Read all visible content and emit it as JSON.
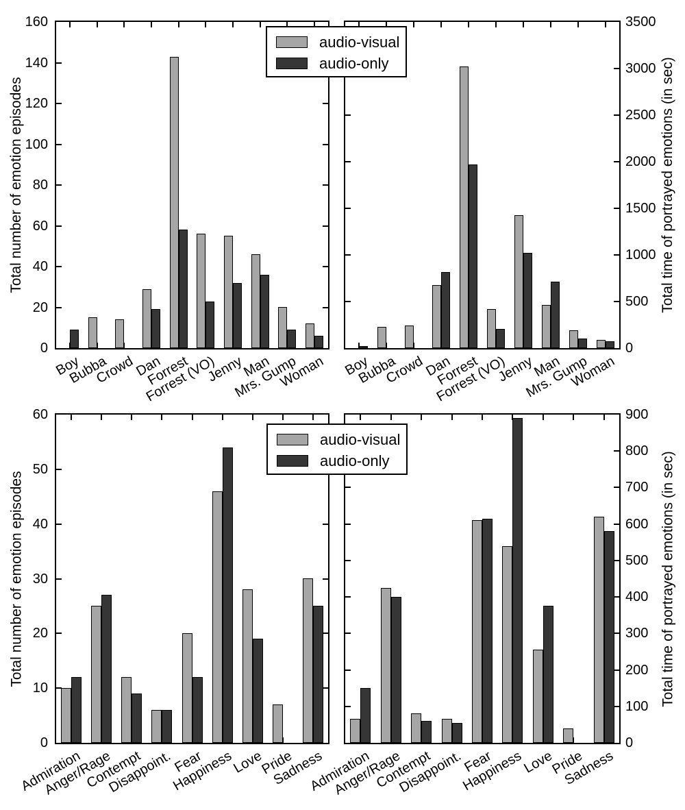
{
  "legend": {
    "items": [
      {
        "name": "audio-visual",
        "label": "audio-visual",
        "color": "#a6a6a6"
      },
      {
        "name": "audio-only",
        "label": "audio-only",
        "color": "#363636"
      }
    ]
  },
  "chart_data": [
    {
      "id": "top-left",
      "type": "bar",
      "ylabel": "Total number of emotion episodes",
      "yside": "left",
      "ylim": [
        0,
        160
      ],
      "ytick_step": 20,
      "grid": false,
      "categories": [
        "Boy",
        "Bubba",
        "Crowd",
        "Dan",
        "Forrest",
        "Forrest (VO)",
        "Jenny",
        "Man",
        "Mrs. Gump",
        "Woman"
      ],
      "series": [
        {
          "name": "audio-visual",
          "values": [
            0,
            15,
            14,
            29,
            143,
            56,
            55,
            46,
            20,
            12
          ]
        },
        {
          "name": "audio-only",
          "values": [
            9,
            0,
            0,
            19,
            58,
            23,
            32,
            36,
            9,
            6
          ]
        }
      ]
    },
    {
      "id": "top-right",
      "type": "bar",
      "ylabel": "Total time of portrayed emotions (in sec)",
      "yside": "right",
      "ylim": [
        0,
        3500
      ],
      "ytick_step": 500,
      "grid": false,
      "categories": [
        "Boy",
        "Bubba",
        "Crowd",
        "Dan",
        "Forrest",
        "Forrest (VO)",
        "Jenny",
        "Man",
        "Mrs. Gump",
        "Woman"
      ],
      "series": [
        {
          "name": "audio-visual",
          "values": [
            0,
            225,
            240,
            680,
            3020,
            420,
            1430,
            465,
            190,
            85
          ]
        },
        {
          "name": "audio-only",
          "values": [
            20,
            0,
            0,
            815,
            1970,
            205,
            1020,
            710,
            100,
            70
          ]
        }
      ]
    },
    {
      "id": "bottom-left",
      "type": "bar",
      "ylabel": "Total number of emotion episodes",
      "yside": "left",
      "ylim": [
        0,
        60
      ],
      "ytick_step": 10,
      "grid": false,
      "categories": [
        "Admiration",
        "Anger/Rage",
        "Contempt",
        "Disappoint.",
        "Fear",
        "Happiness",
        "Love",
        "Pride",
        "Sadness"
      ],
      "series": [
        {
          "name": "audio-visual",
          "values": [
            10,
            25,
            12,
            6,
            20,
            46,
            28,
            7,
            30
          ]
        },
        {
          "name": "audio-only",
          "values": [
            12,
            27,
            9,
            6,
            12,
            54,
            19,
            0,
            25
          ]
        }
      ]
    },
    {
      "id": "bottom-right",
      "type": "bar",
      "ylabel": "Total time of portrayed emotions (in sec)",
      "yside": "right",
      "ylim": [
        0,
        900
      ],
      "ytick_step": 100,
      "grid": false,
      "categories": [
        "Admiration",
        "Anger/Rage",
        "Contempt",
        "Disappoint.",
        "Fear",
        "Happiness",
        "Love",
        "Pride",
        "Sadness"
      ],
      "series": [
        {
          "name": "audio-visual",
          "values": [
            65,
            425,
            80,
            65,
            610,
            540,
            255,
            40,
            620
          ]
        },
        {
          "name": "audio-only",
          "values": [
            150,
            400,
            60,
            55,
            615,
            890,
            375,
            0,
            580
          ]
        }
      ]
    }
  ]
}
